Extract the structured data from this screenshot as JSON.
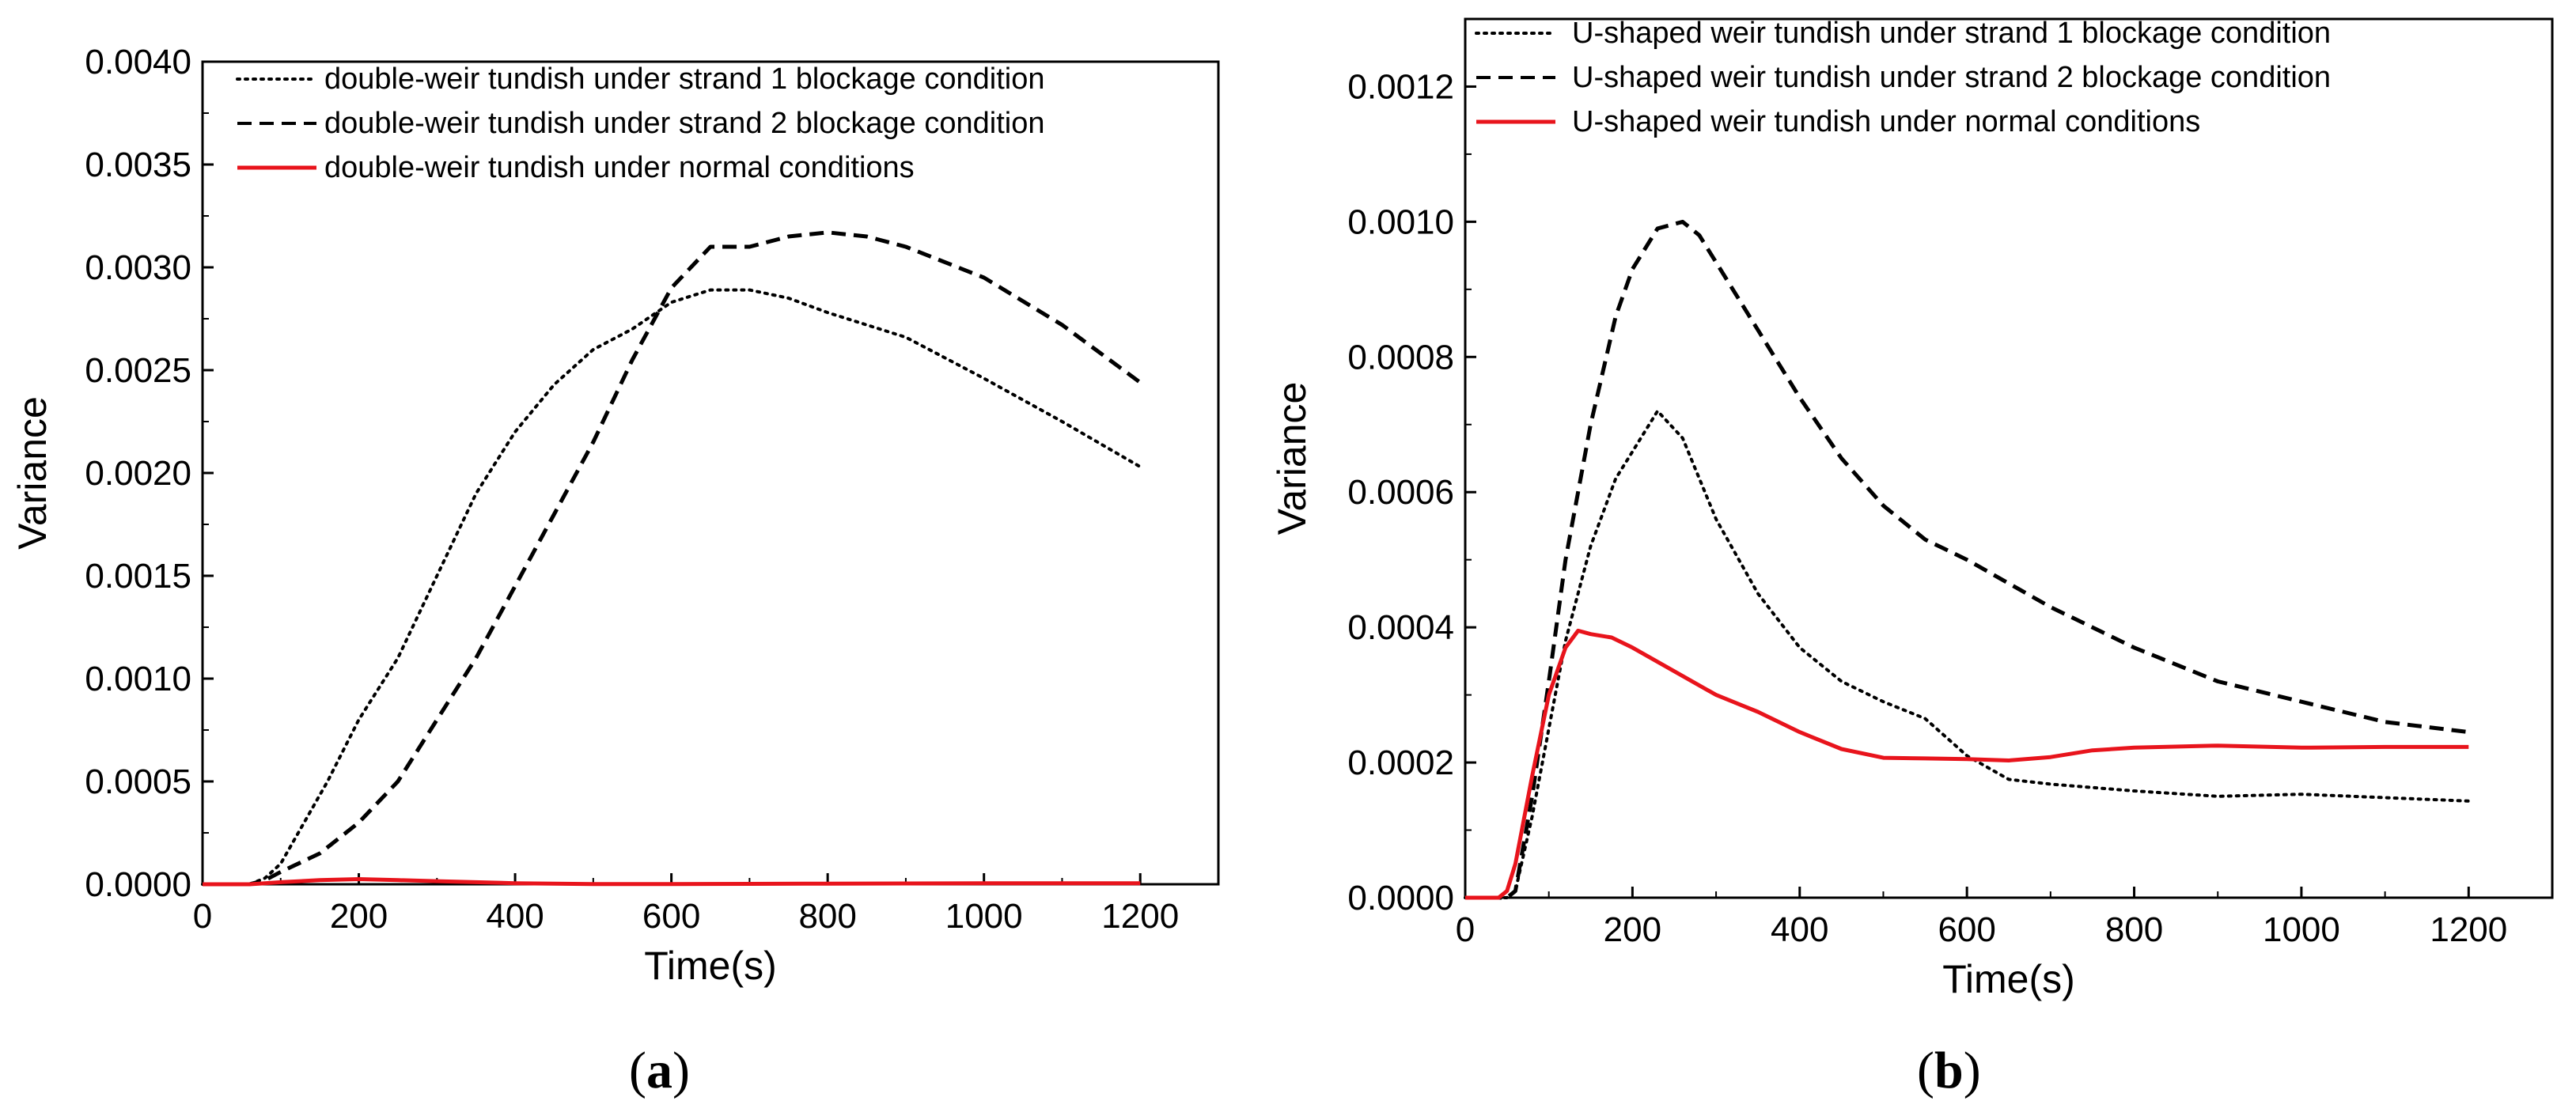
{
  "chart_data": [
    {
      "type": "line",
      "panel_label": {
        "open": "(",
        "letter": "a",
        "close": ")"
      },
      "title": "",
      "xlabel": "Time(s)",
      "ylabel": "Variance",
      "xlim": [
        0,
        1300
      ],
      "ylim": [
        0,
        0.004
      ],
      "xticks": [
        0,
        200,
        400,
        600,
        800,
        1000,
        1200
      ],
      "yticks": [
        0,
        0.0005,
        0.001,
        0.0015,
        0.002,
        0.0025,
        0.003,
        0.0035,
        0.004
      ],
      "ytick_labels": [
        "0.0000",
        "0.0005",
        "0.0010",
        "0.0015",
        "0.0020",
        "0.0025",
        "0.0030",
        "0.0035",
        "0.0040"
      ],
      "xtick_labels": [
        "0",
        "200",
        "400",
        "600",
        "800",
        "1000",
        "1200"
      ],
      "grid": false,
      "legend_position": "top-left",
      "series": [
        {
          "name": "double-weir tundish under strand 1 blockage condition",
          "style": "dotted",
          "color": "#000000",
          "x": [
            0,
            60,
            80,
            100,
            130,
            160,
            200,
            250,
            300,
            350,
            400,
            450,
            500,
            550,
            600,
            650,
            700,
            750,
            800,
            850,
            900,
            1000,
            1100,
            1200
          ],
          "y": [
            0,
            0,
            3e-05,
            0.0001,
            0.0003,
            0.0005,
            0.0008,
            0.0011,
            0.0015,
            0.0019,
            0.0022,
            0.00243,
            0.0026,
            0.0027,
            0.00283,
            0.00289,
            0.00289,
            0.00285,
            0.00278,
            0.00272,
            0.00266,
            0.00246,
            0.00225,
            0.00203
          ]
        },
        {
          "name": "double-weir tundish under strand 2 blockage condition",
          "style": "dashed",
          "color": "#000000",
          "x": [
            0,
            60,
            80,
            100,
            150,
            200,
            250,
            300,
            350,
            400,
            450,
            500,
            550,
            600,
            650,
            700,
            750,
            800,
            850,
            900,
            1000,
            1100,
            1200
          ],
          "y": [
            0,
            0,
            2e-05,
            6e-05,
            0.00015,
            0.0003,
            0.0005,
            0.0008,
            0.0011,
            0.00145,
            0.0018,
            0.00215,
            0.00255,
            0.0029,
            0.0031,
            0.0031,
            0.00315,
            0.00317,
            0.00315,
            0.0031,
            0.00295,
            0.00272,
            0.00244
          ]
        },
        {
          "name": "double-weir tundish under normal conditions",
          "style": "solid",
          "color": "#e8141c",
          "x": [
            0,
            60,
            80,
            100,
            150,
            200,
            250,
            300,
            400,
            500,
            600,
            700,
            800,
            900,
            1000,
            1100,
            1200
          ],
          "y": [
            0,
            0,
            5e-06,
            1e-05,
            2e-05,
            2.5e-05,
            2e-05,
            1.5e-05,
            5e-06,
            1e-06,
            1e-06,
            2e-06,
            3e-06,
            4e-06,
            5e-06,
            5e-06,
            5e-06
          ]
        }
      ]
    },
    {
      "type": "line",
      "panel_label": {
        "open": "(",
        "letter": "b",
        "close": ")"
      },
      "title": "",
      "xlabel": "Time(s)",
      "ylabel": "Variance",
      "xlim": [
        0,
        1300
      ],
      "ylim": [
        0,
        0.0013
      ],
      "xticks": [
        0,
        200,
        400,
        600,
        800,
        1000,
        1200
      ],
      "yticks": [
        0,
        0.0002,
        0.0004,
        0.0006,
        0.0008,
        0.001,
        0.0012
      ],
      "ytick_labels": [
        "0.0000",
        "0.0002",
        "0.0004",
        "0.0006",
        "0.0008",
        "0.0010",
        "0.0012"
      ],
      "xtick_labels": [
        "0",
        "200",
        "400",
        "600",
        "800",
        "1000",
        "1200"
      ],
      "grid": false,
      "legend_position": "top-left",
      "series": [
        {
          "name": "U-shaped weir tundish under strand 1 blockage condition",
          "style": "dotted",
          "color": "#000000",
          "x": [
            0,
            50,
            60,
            80,
            100,
            120,
            150,
            180,
            200,
            230,
            260,
            300,
            350,
            400,
            450,
            500,
            550,
            600,
            650,
            700,
            800,
            900,
            1000,
            1100,
            1200
          ],
          "y": [
            0,
            0,
            1e-05,
            0.00012,
            0.00025,
            0.00038,
            0.00052,
            0.00062,
            0.00066,
            0.00072,
            0.00068,
            0.00056,
            0.00045,
            0.00037,
            0.00032,
            0.00029,
            0.000265,
            0.00021,
            0.000175,
            0.000168,
            0.000158,
            0.00015,
            0.000153,
            0.000148,
            0.000143
          ]
        },
        {
          "name": "U-shaped weir tundish under strand 2 blockage condition",
          "style": "dashed",
          "color": "#000000",
          "x": [
            0,
            50,
            60,
            80,
            100,
            120,
            150,
            180,
            200,
            230,
            260,
            280,
            300,
            350,
            400,
            450,
            500,
            550,
            600,
            700,
            800,
            900,
            1000,
            1100,
            1200
          ],
          "y": [
            0,
            0,
            1e-05,
            0.00015,
            0.00032,
            0.0005,
            0.0007,
            0.00086,
            0.00093,
            0.00099,
            0.001,
            0.00098,
            0.00094,
            0.00084,
            0.00074,
            0.00065,
            0.00058,
            0.00053,
            0.0005,
            0.00043,
            0.00037,
            0.00032,
            0.00029,
            0.00026,
            0.000245
          ]
        },
        {
          "name": "U-shaped weir tundish under normal conditions",
          "style": "solid",
          "color": "#e8141c",
          "x": [
            0,
            40,
            50,
            60,
            80,
            100,
            120,
            135,
            150,
            175,
            200,
            250,
            300,
            350,
            400,
            450,
            500,
            550,
            600,
            650,
            700,
            750,
            800,
            900,
            1000,
            1100,
            1200
          ],
          "y": [
            0,
            0,
            1e-05,
            5e-05,
            0.00018,
            0.0003,
            0.00037,
            0.000395,
            0.00039,
            0.000385,
            0.00037,
            0.000335,
            0.0003,
            0.000275,
            0.000245,
            0.00022,
            0.000207,
            0.000206,
            0.000205,
            0.000203,
            0.000208,
            0.000218,
            0.000222,
            0.000225,
            0.000222,
            0.000223,
            0.000223
          ]
        }
      ]
    }
  ]
}
